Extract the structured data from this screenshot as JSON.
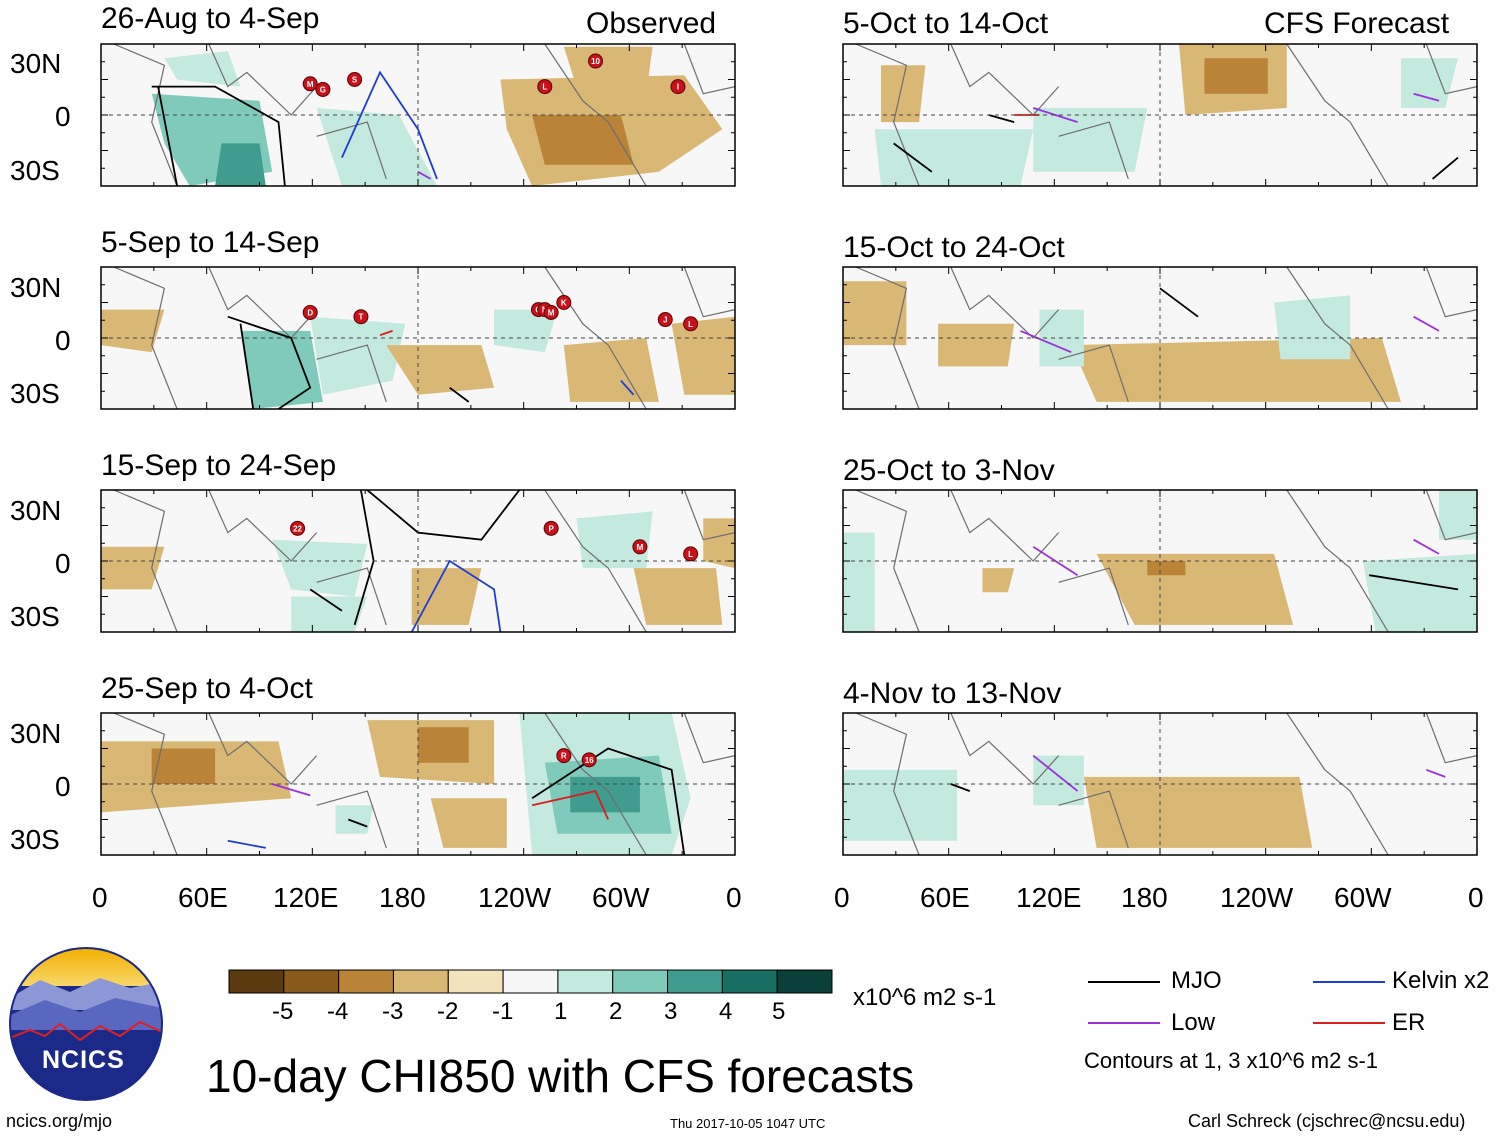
{
  "header": {
    "left_label": "Observed",
    "right_label": "CFS Forecast"
  },
  "panels": [
    {
      "title": "26-Aug to 4-Sep"
    },
    {
      "title": "5-Sep to 14-Sep"
    },
    {
      "title": "15-Sep to 24-Sep"
    },
    {
      "title": "25-Sep to 4-Oct"
    },
    {
      "title": "5-Oct to 14-Oct"
    },
    {
      "title": "15-Oct to 24-Oct"
    },
    {
      "title": "25-Oct to 3-Nov"
    },
    {
      "title": "4-Nov to 13-Nov"
    }
  ],
  "lat_labels": [
    "30N",
    "0",
    "30S"
  ],
  "lon_labels": [
    "0",
    "60E",
    "120E",
    "180",
    "120W",
    "60W",
    "0"
  ],
  "colorbar": {
    "ticks": [
      "-5",
      "-4",
      "-3",
      "-2",
      "-1",
      "1",
      "2",
      "3",
      "4",
      "5"
    ],
    "colors": [
      "#5b3a10",
      "#8a5a1c",
      "#b98437",
      "#d9b774",
      "#f3e2bb",
      "#f7f7f7",
      "#c4e9df",
      "#7fcabb",
      "#3f9c8f",
      "#186e63",
      "#0b3f39"
    ],
    "units": "x10^6 m2 s-1"
  },
  "chart_data": {
    "type": "map",
    "title": "10-day CHI850 with CFS forecasts",
    "variable": "CHI850 anomaly",
    "units": "x10^6 m2 s-1",
    "contour_levels": [
      1,
      3
    ],
    "lat_range": [
      -40,
      40
    ],
    "lon_range": [
      0,
      360
    ]
  },
  "legend": {
    "items": [
      {
        "label": "MJO",
        "color": "#000000"
      },
      {
        "label": "Kelvin x2",
        "color": "#1e3cd8"
      },
      {
        "label": "Low",
        "color": "#9b30e0"
      },
      {
        "label": "ER",
        "color": "#d81e1e"
      }
    ],
    "note": "Contours at 1, 3 x10^6 m2 s-1"
  },
  "logo": {
    "text": "NCICS"
  },
  "footer": {
    "url": "ncics.org/mjo",
    "timestamp": "Thu 2017-10-05 1047 UTC",
    "credit": "Carl Schreck (cjschrec@ncsu.edu)"
  },
  "storms": [
    {
      "panel": 0,
      "label": "M"
    },
    {
      "panel": 0,
      "label": "G"
    },
    {
      "panel": 0,
      "label": "S"
    },
    {
      "panel": 0,
      "label": "L"
    },
    {
      "panel": 0,
      "label": "10"
    },
    {
      "panel": 0,
      "label": "I"
    },
    {
      "panel": 1,
      "label": "D"
    },
    {
      "panel": 1,
      "label": "T"
    },
    {
      "panel": 1,
      "label": "O"
    },
    {
      "panel": 1,
      "label": "N"
    },
    {
      "panel": 1,
      "label": "M"
    },
    {
      "panel": 1,
      "label": "K"
    },
    {
      "panel": 1,
      "label": "J"
    },
    {
      "panel": 1,
      "label": "L"
    },
    {
      "panel": 2,
      "label": "22"
    },
    {
      "panel": 2,
      "label": "P"
    },
    {
      "panel": 2,
      "label": "M"
    },
    {
      "panel": 2,
      "label": "L"
    },
    {
      "panel": 3,
      "label": "R"
    },
    {
      "panel": 3,
      "label": "16"
    }
  ]
}
